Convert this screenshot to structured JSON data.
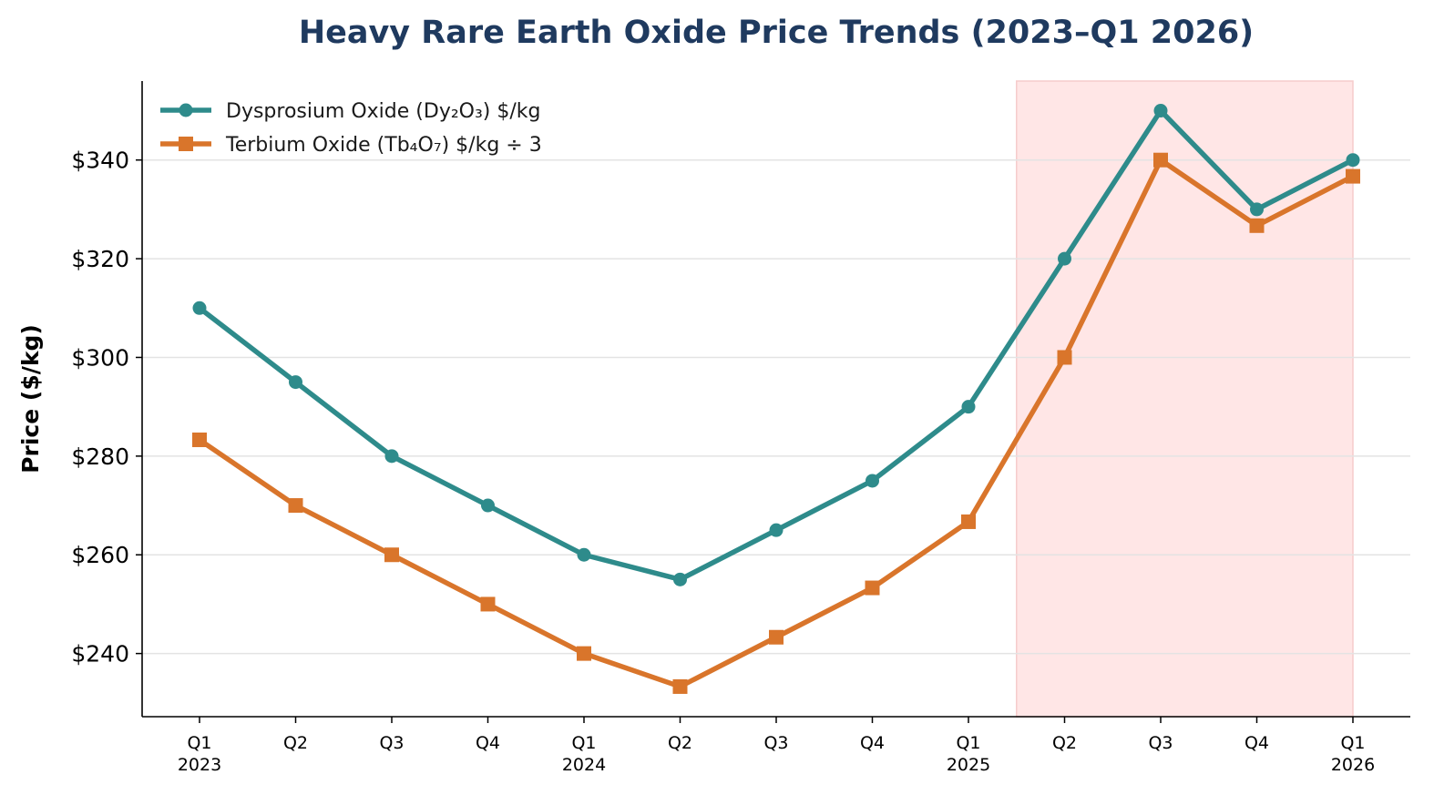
{
  "chart_data": {
    "type": "line",
    "title": "Heavy Rare Earth Oxide Price Trends (2023–Q1 2026)",
    "ylabel": "Price ($/kg)",
    "xlabel": "",
    "ylim": [
      227.2,
      356.0
    ],
    "y_ticks": [
      240,
      260,
      280,
      300,
      320,
      340
    ],
    "y_tick_labels": [
      "$240",
      "$260",
      "$280",
      "$300",
      "$320",
      "$340"
    ],
    "categories": [
      "Q1 2023",
      "Q2 2023",
      "Q3 2023",
      "Q4 2023",
      "Q1 2024",
      "Q2 2024",
      "Q3 2024",
      "Q4 2024",
      "Q1 2025",
      "Q2 2025",
      "Q3 2025",
      "Q4 2025",
      "Q1 2026"
    ],
    "x_tick_labels": [
      [
        "Q1",
        "2023"
      ],
      [
        "Q2",
        ""
      ],
      [
        "Q3",
        ""
      ],
      [
        "Q4",
        ""
      ],
      [
        "Q1",
        "2024"
      ],
      [
        "Q2",
        ""
      ],
      [
        "Q3",
        ""
      ],
      [
        "Q4",
        ""
      ],
      [
        "Q1",
        "2025"
      ],
      [
        "Q2",
        ""
      ],
      [
        "Q3",
        ""
      ],
      [
        "Q4",
        ""
      ],
      [
        "Q1",
        "2026"
      ]
    ],
    "series": [
      {
        "name": "Dysprosium Oxide (Dy₂O₃) $/kg",
        "color": "#2e8b8b",
        "marker": "circle",
        "values": [
          310,
          295,
          280,
          270,
          260,
          255,
          265,
          275,
          290,
          320,
          350,
          330,
          340
        ]
      },
      {
        "name": "Terbium Oxide (Tb₄O₇) $/kg ÷ 3",
        "color": "#d9752b",
        "marker": "square",
        "values": [
          283.3,
          270,
          260,
          250,
          240,
          233.3,
          243.3,
          253.3,
          266.7,
          300,
          340,
          326.7,
          336.7
        ]
      }
    ],
    "highlight_region": {
      "x_start": 8.5,
      "x_end": 12,
      "color": "#ffe6e6"
    },
    "grid": "horizontal",
    "legend_position": "top-left"
  }
}
